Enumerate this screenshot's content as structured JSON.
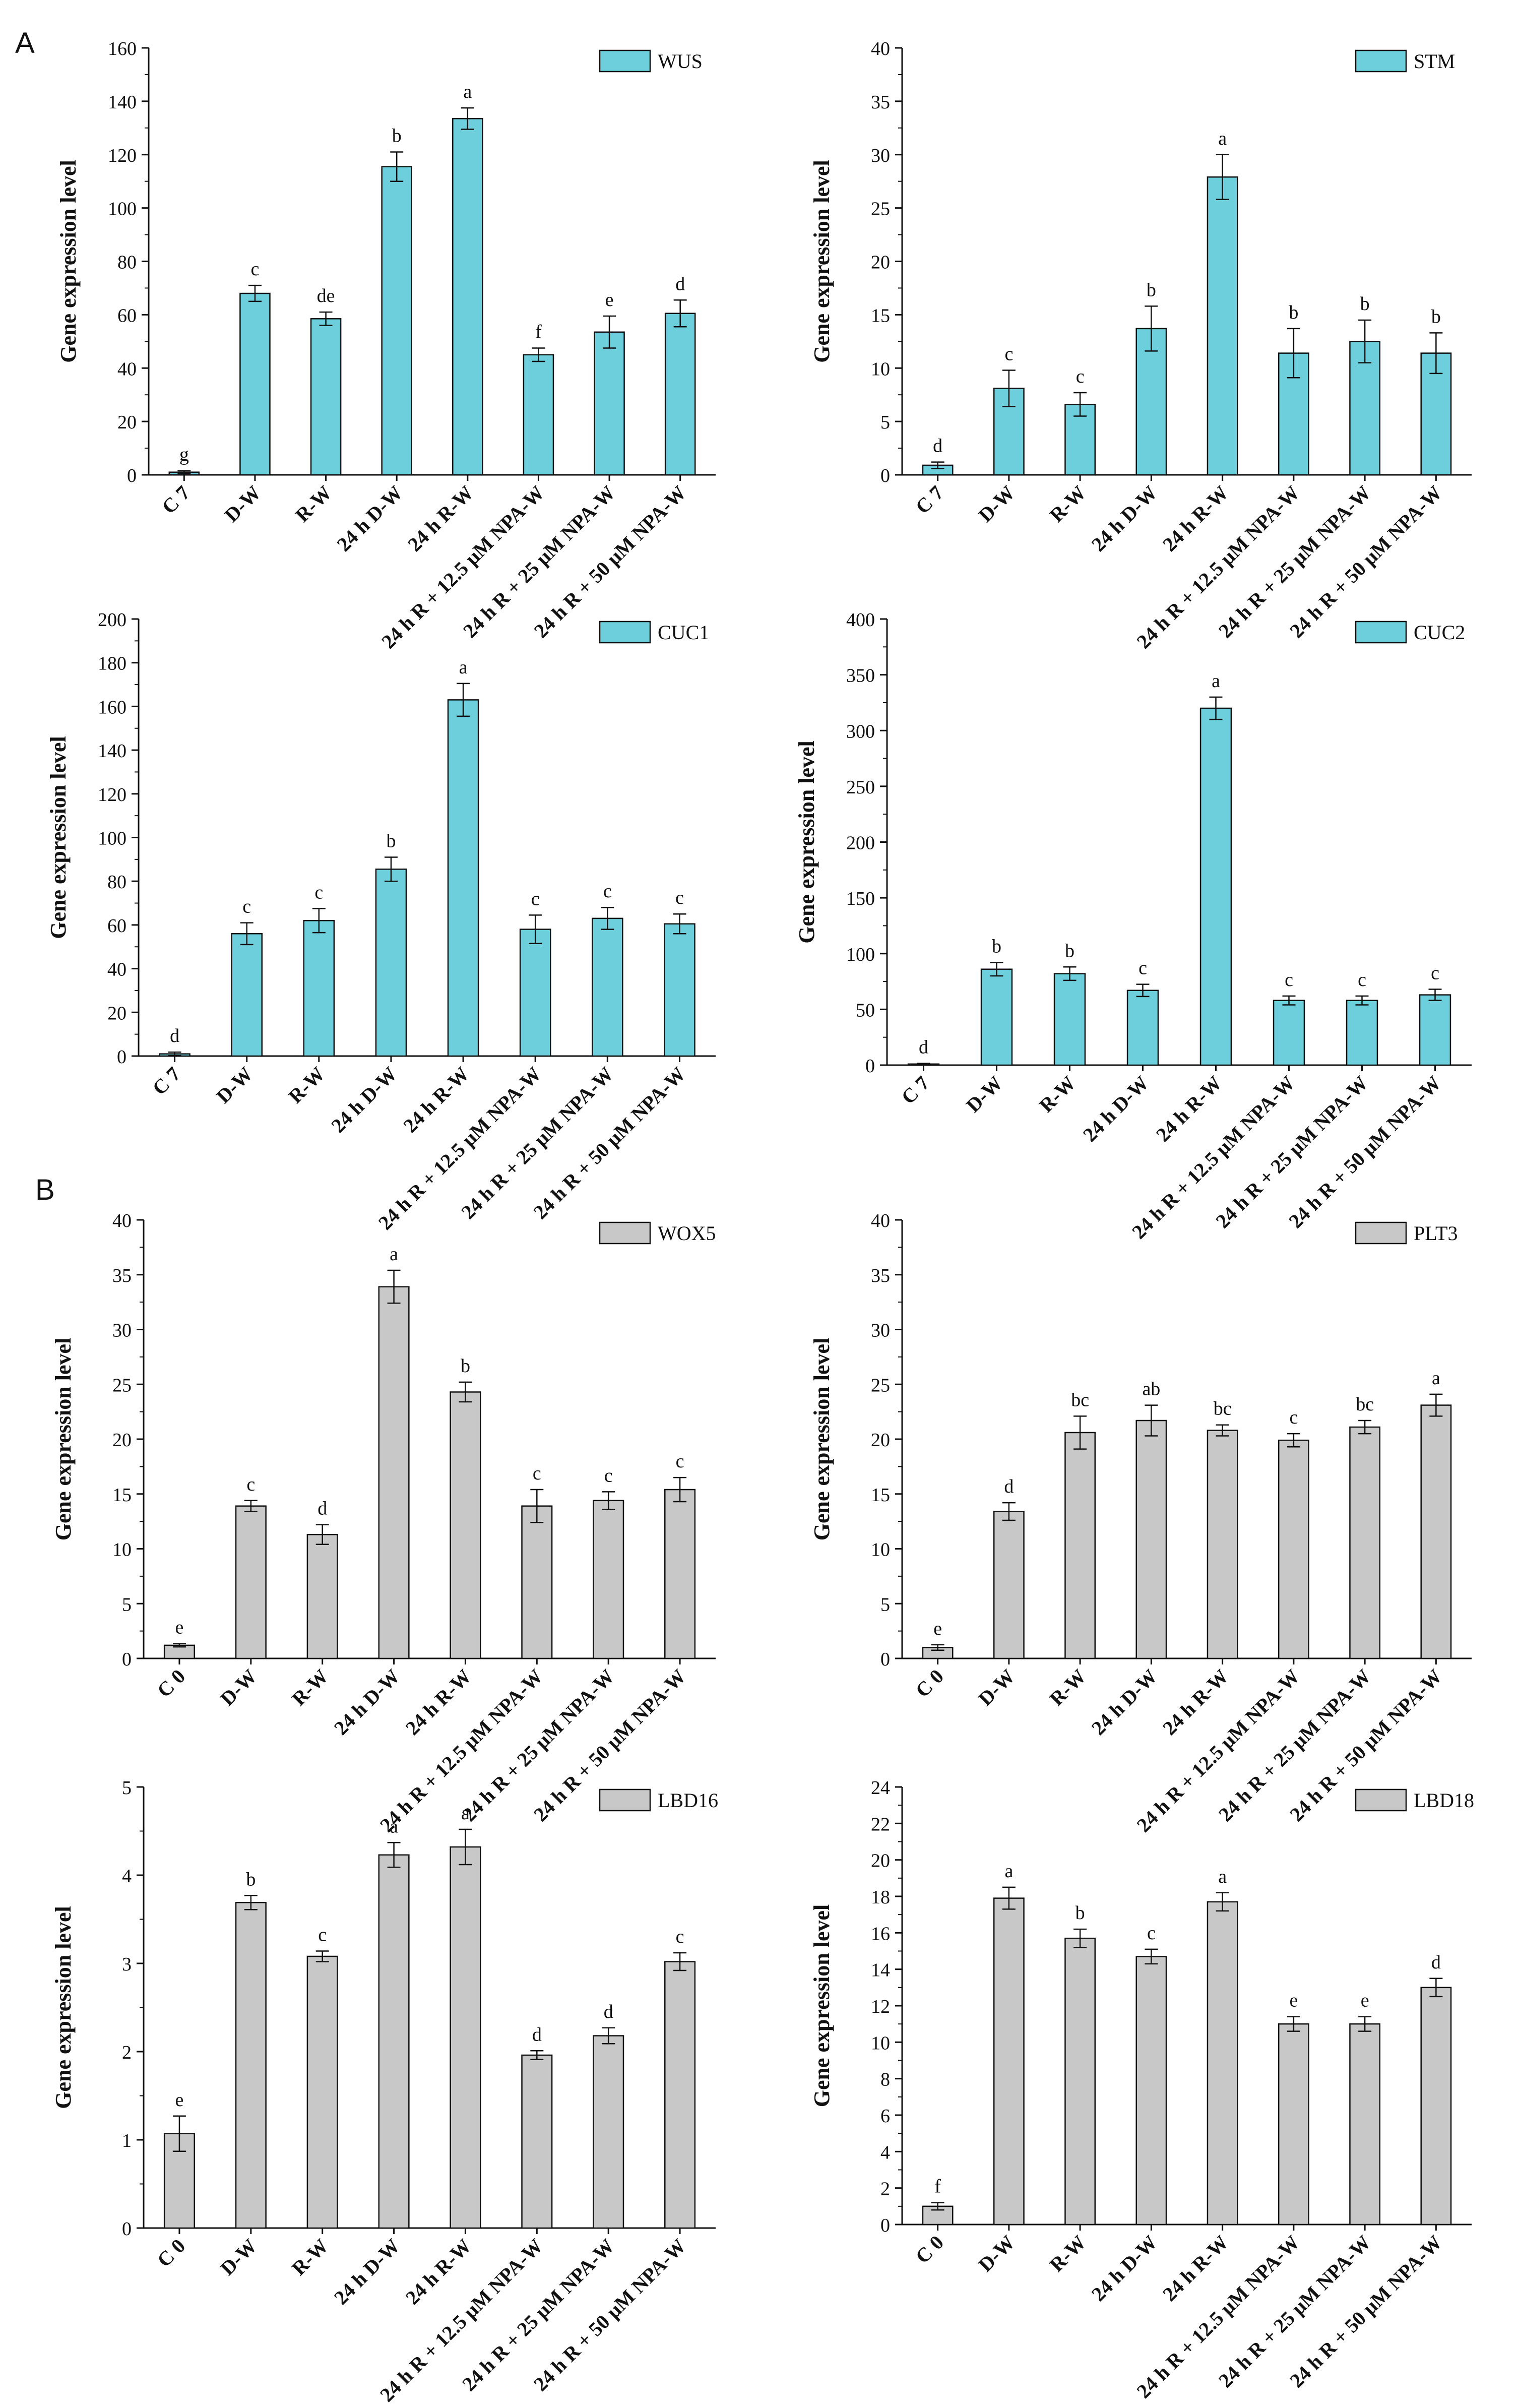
{
  "panel_labels": [
    "A",
    "B"
  ],
  "colors": {
    "cyan": "#6dcfdb",
    "grey": "#c8c8c8",
    "axis": "#111111"
  },
  "axis_title": "Gene expression level",
  "chart_data": [
    {
      "type": "bar",
      "panel": "A",
      "legend": "WUS",
      "legend_position": "top-right",
      "categories": [
        "C 7",
        "D-W",
        "R-W",
        "24 h D-W",
        "24 h R-W",
        "24 h R + 12.5 μM NPA-W",
        "24 h R + 25 μM NPA-W",
        "24 h R + 50 μM NPA-W"
      ],
      "values": [
        1,
        68,
        58.5,
        115.5,
        133.5,
        45,
        53.5,
        60.5
      ],
      "errors": [
        0.5,
        3,
        2.5,
        5.5,
        4,
        2.5,
        6,
        5
      ],
      "letters": [
        "g",
        "c",
        "de",
        "b",
        "a",
        "f",
        "e",
        "d"
      ],
      "ylim": [
        0,
        160
      ],
      "ticks": [
        0,
        20,
        40,
        60,
        80,
        100,
        120,
        140,
        160
      ],
      "ylabel": "Gene expression level",
      "color": "#6dcfdb"
    },
    {
      "type": "bar",
      "panel": "A",
      "legend": "STM",
      "legend_position": "top-right",
      "categories": [
        "C 7",
        "D-W",
        "R-W",
        "24 h D-W",
        "24 h R-W",
        "24 h R + 12.5 μM NPA-W",
        "24 h R + 25 μM NPA-W",
        "24 h R + 50 μM NPA-W"
      ],
      "values": [
        0.9,
        8.1,
        6.6,
        13.7,
        27.9,
        11.4,
        12.5,
        11.4
      ],
      "errors": [
        0.3,
        1.7,
        1.1,
        2.1,
        2.1,
        2.3,
        2,
        1.9
      ],
      "letters": [
        "d",
        "c",
        "c",
        "b",
        "a",
        "b",
        "b",
        "b"
      ],
      "ylim": [
        0,
        40
      ],
      "ticks": [
        0,
        5,
        10,
        15,
        20,
        25,
        30,
        35,
        40
      ],
      "ylabel": "Gene expression level",
      "color": "#6dcfdb"
    },
    {
      "type": "bar",
      "panel": "A",
      "legend": "CUC1",
      "legend_position": "top-right",
      "categories": [
        "C 7",
        "D-W",
        "R-W",
        "24 h D-W",
        "24 h R-W",
        "24 h R + 12.5 μM NPA-W",
        "24 h R + 25 μM NPA-W",
        "24 h R + 50 μM NPA-W"
      ],
      "values": [
        1,
        56,
        62,
        85.5,
        163,
        58,
        63,
        60.5
      ],
      "errors": [
        0.8,
        5,
        5.5,
        5.5,
        7.5,
        6.5,
        5,
        4.5
      ],
      "letters": [
        "d",
        "c",
        "c",
        "b",
        "a",
        "c",
        "c",
        "c"
      ],
      "ylim": [
        0,
        200
      ],
      "ticks": [
        0,
        20,
        40,
        60,
        80,
        100,
        120,
        140,
        160,
        180,
        200
      ],
      "ylabel": "Gene expression level",
      "color": "#6dcfdb"
    },
    {
      "type": "bar",
      "panel": "A",
      "legend": "CUC2",
      "legend_position": "top-right",
      "categories": [
        "C 7",
        "D-W",
        "R-W",
        "24 h D-W",
        "24 h R-W",
        "24 h R + 12.5 μM NPA-W",
        "24 h R + 25 μM NPA-W",
        "24 h R + 50 μM NPA-W"
      ],
      "values": [
        1,
        86,
        82,
        67,
        320,
        58,
        58,
        63
      ],
      "errors": [
        0.5,
        6,
        6,
        5.5,
        10,
        4,
        4,
        5
      ],
      "letters": [
        "d",
        "b",
        "b",
        "c",
        "a",
        "c",
        "c",
        "c"
      ],
      "ylim": [
        0,
        400
      ],
      "ticks": [
        0,
        50,
        100,
        150,
        200,
        250,
        300,
        350,
        400
      ],
      "ylabel": "Gene expression level",
      "color": "#6dcfdb"
    },
    {
      "type": "bar",
      "panel": "B",
      "legend": "WOX5",
      "legend_position": "top-right",
      "categories": [
        "C 0",
        "D-W",
        "R-W",
        "24 h D-W",
        "24 h R-W",
        "24 h R + 12.5 μM NPA-W",
        "24 h R + 25 μM NPA-W",
        "24 h R + 50 μM NPA-W"
      ],
      "values": [
        1.2,
        13.9,
        11.3,
        33.9,
        24.3,
        13.9,
        14.4,
        15.4
      ],
      "errors": [
        0.15,
        0.5,
        0.9,
        1.5,
        0.9,
        1.5,
        0.8,
        1.1
      ],
      "letters": [
        "e",
        "c",
        "d",
        "a",
        "b",
        "c",
        "c",
        "c"
      ],
      "ylim": [
        0,
        40
      ],
      "ticks": [
        0,
        5,
        10,
        15,
        20,
        25,
        30,
        35,
        40
      ],
      "ylabel": "Gene expression level",
      "color": "#c8c8c8"
    },
    {
      "type": "bar",
      "panel": "B",
      "legend": "PLT3",
      "legend_position": "top-right",
      "categories": [
        "C 0",
        "D-W",
        "R-W",
        "24 h D-W",
        "24 h R-W",
        "24 h R + 12.5 μM NPA-W",
        "24 h R + 25 μM NPA-W",
        "24 h R + 50 μM NPA-W"
      ],
      "values": [
        1,
        13.4,
        20.6,
        21.7,
        20.8,
        19.9,
        21.1,
        23.1
      ],
      "errors": [
        0.25,
        0.8,
        1.5,
        1.4,
        0.5,
        0.6,
        0.6,
        1
      ],
      "letters": [
        "e",
        "d",
        "bc",
        "ab",
        "bc",
        "c",
        "bc",
        "a"
      ],
      "ylim": [
        0,
        40
      ],
      "ticks": [
        0,
        5,
        10,
        15,
        20,
        25,
        30,
        35,
        40
      ],
      "ylabel": "Gene expression level",
      "color": "#c8c8c8"
    },
    {
      "type": "bar",
      "panel": "B",
      "legend": "LBD16",
      "legend_position": "top-right",
      "categories": [
        "C 0",
        "D-W",
        "R-W",
        "24 h D-W",
        "24 h R-W",
        "24 h R + 12.5 μM NPA-W",
        "24 h R + 25 μM NPA-W",
        "24 h R + 50 μM NPA-W"
      ],
      "values": [
        1.07,
        3.69,
        3.08,
        4.23,
        4.32,
        1.96,
        2.18,
        3.02
      ],
      "errors": [
        0.2,
        0.08,
        0.06,
        0.14,
        0.2,
        0.05,
        0.09,
        0.1
      ],
      "letters": [
        "e",
        "b",
        "c",
        "a",
        "a",
        "d",
        "d",
        "c"
      ],
      "ylim": [
        0,
        5
      ],
      "ticks": [
        0,
        1,
        2,
        3,
        4,
        5
      ],
      "ylabel": "Gene expression level",
      "color": "#c8c8c8"
    },
    {
      "type": "bar",
      "panel": "B",
      "legend": "LBD18",
      "legend_position": "top-right",
      "categories": [
        "C 0",
        "D-W",
        "R-W",
        "24 h D-W",
        "24 h R-W",
        "24 h R + 12.5 μM NPA-W",
        "24 h R + 25 μM NPA-W",
        "24 h R + 50 μM NPA-W"
      ],
      "values": [
        1,
        17.9,
        15.7,
        14.7,
        17.7,
        11,
        11,
        13
      ],
      "errors": [
        0.2,
        0.6,
        0.5,
        0.4,
        0.5,
        0.4,
        0.4,
        0.5
      ],
      "letters": [
        "f",
        "a",
        "b",
        "c",
        "a",
        "e",
        "e",
        "d"
      ],
      "ylim": [
        0,
        24
      ],
      "ticks": [
        0,
        2,
        4,
        6,
        8,
        10,
        12,
        14,
        16,
        18,
        20,
        22,
        24
      ],
      "ylabel": "Gene expression level",
      "color": "#c8c8c8"
    }
  ]
}
